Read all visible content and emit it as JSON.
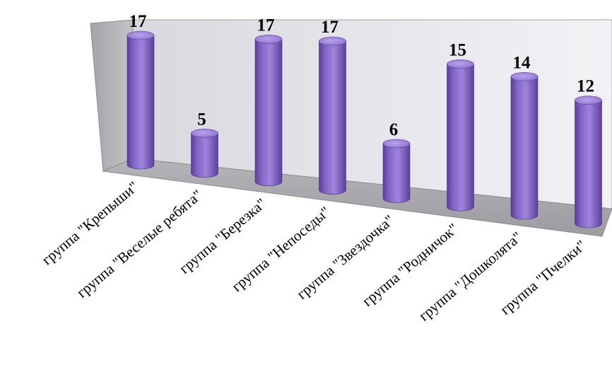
{
  "chart_data": {
    "type": "bar",
    "style": "3d-cylinder",
    "categories": [
      "группа \"Крепыши\"",
      "группа \"Веселые ребята\"",
      "группа \"Березка\"",
      "группа \"Непоседы\"",
      "группа \"Звездочка\"",
      "группа \"Родничок\"",
      "группа \"Дошколята\"",
      "группа \"Пчелки\""
    ],
    "values": [
      17,
      5,
      17,
      17,
      6,
      15,
      14,
      12
    ],
    "ylim": [
      0,
      17
    ],
    "grid": false,
    "legend": "none",
    "bar_color": "#8a6ccf",
    "wall_color": "#eeeef2",
    "floor_color": "#a9a9ad"
  }
}
